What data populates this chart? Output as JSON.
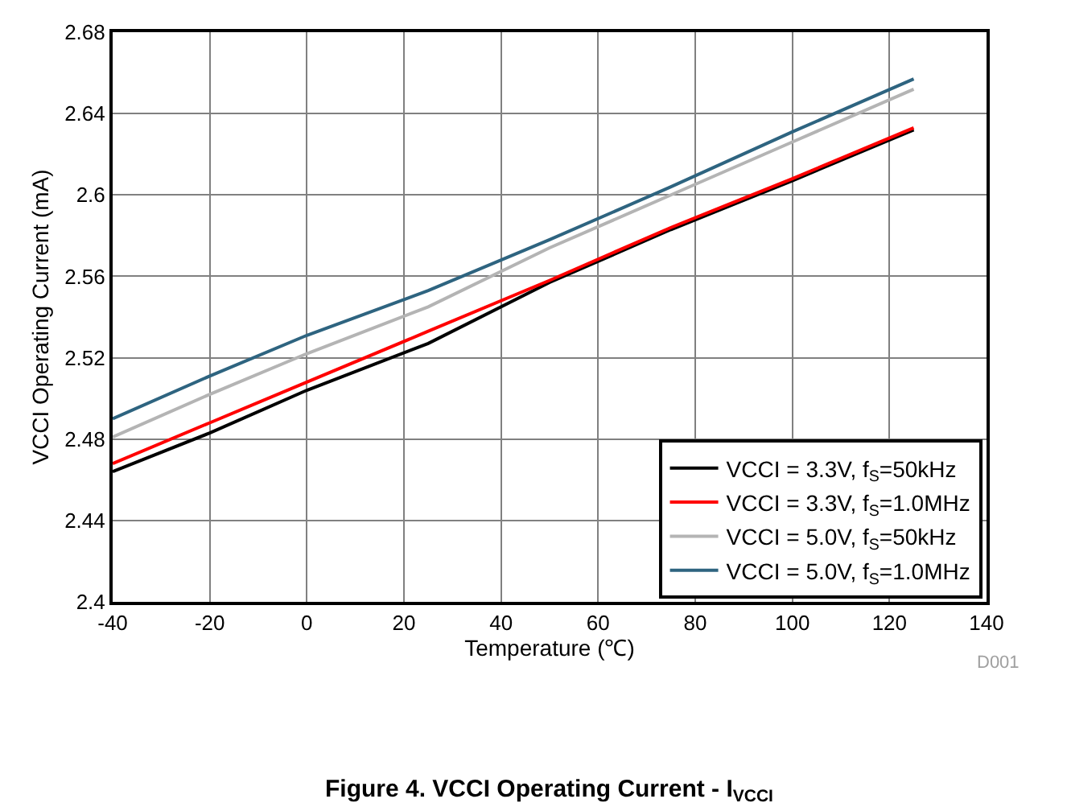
{
  "chart_data": {
    "type": "line",
    "title": "Figure 4. VCCI Operating Current - I$_{VCCI}$",
    "xlabel": "Temperature (℃)",
    "ylabel": "VCCI Operating Current (mA)",
    "x": [
      -40,
      -20,
      0,
      25,
      50,
      75,
      100,
      125
    ],
    "series": [
      {
        "name": "VCCI = 3.3V, f$_{S}$=50kHz",
        "color": "#000000",
        "values": [
          2.464,
          2.483,
          2.504,
          2.527,
          2.557,
          2.583,
          2.607,
          2.632
        ]
      },
      {
        "name": "VCCI = 3.3V, f$_{S}$=1.0MHz",
        "color": "#ff0000",
        "values": [
          2.468,
          2.488,
          2.508,
          2.533,
          2.558,
          2.584,
          2.608,
          2.633
        ]
      },
      {
        "name": "VCCI = 5.0V, f$_{S}$=50kHz",
        "color": "#b4b4b4",
        "values": [
          2.481,
          2.502,
          2.522,
          2.545,
          2.574,
          2.6,
          2.626,
          2.652
        ]
      },
      {
        "name": "VCCI = 5.0V, f$_{S}$=1.0MHz",
        "color": "#2e6480",
        "values": [
          2.49,
          2.511,
          2.531,
          2.553,
          2.578,
          2.604,
          2.631,
          2.657
        ]
      }
    ],
    "xlim": [
      -40,
      140
    ],
    "xticks": [
      -40,
      -20,
      0,
      20,
      40,
      60,
      80,
      100,
      120,
      140
    ],
    "ylim": [
      2.4,
      2.68
    ],
    "yticks": [
      2.4,
      2.44,
      2.48,
      2.52,
      2.56,
      2.6,
      2.64,
      2.68
    ],
    "annotations": [
      "D001"
    ],
    "grid": true,
    "legend": "bottom right",
    "marker": "none",
    "line_style": "solid"
  }
}
